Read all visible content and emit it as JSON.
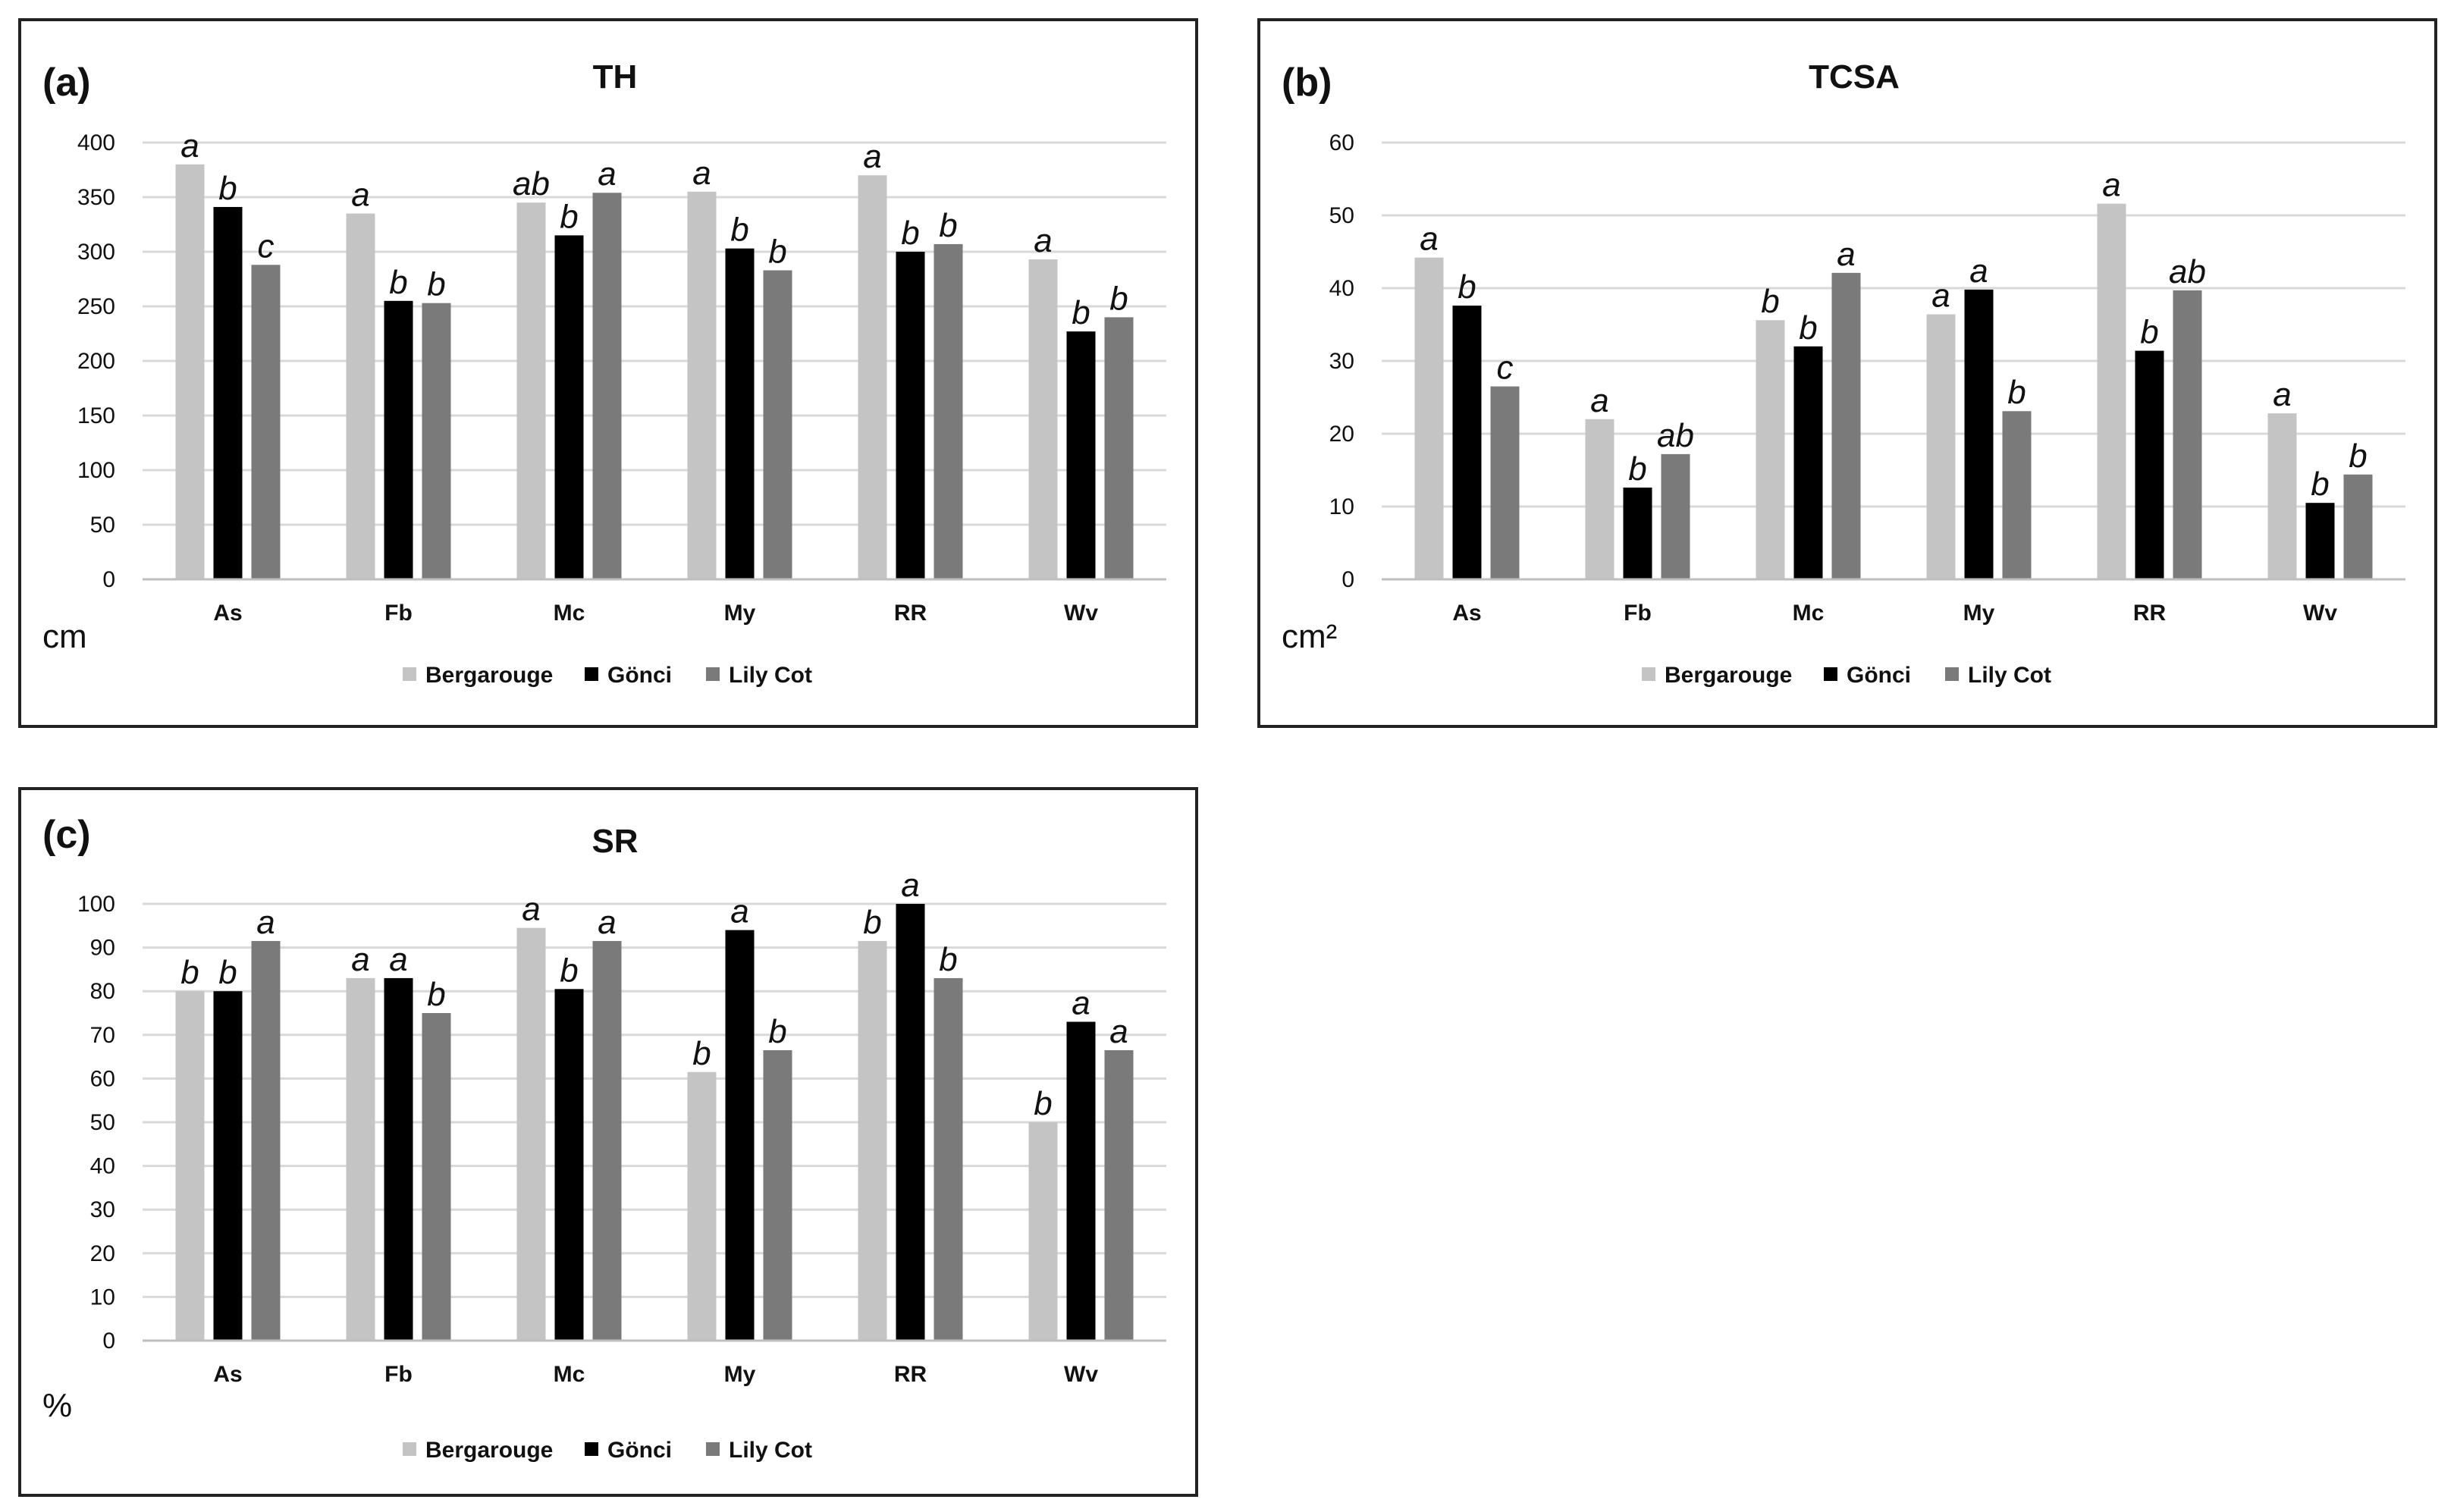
{
  "colors": {
    "Bergarouge": "#c4c4c4",
    "Gönci": "#000000",
    "Lily Cot": "#7a7a7a",
    "grid": "#d9d9d9",
    "axis": "#bfbfbf"
  },
  "chart_data": [
    {
      "panel": "(a)",
      "type": "bar",
      "title": "TH",
      "unit": "cm",
      "categories": [
        "As",
        "Fb",
        "Mc",
        "My",
        "RR",
        "Wv"
      ],
      "ylim": [
        0,
        400
      ],
      "yticks": [
        0,
        50,
        100,
        150,
        200,
        250,
        300,
        350,
        400
      ],
      "legend_position": "bottom",
      "series": [
        {
          "name": "Bergarouge",
          "values": [
            380,
            335,
            345,
            355,
            370,
            293
          ],
          "letters": [
            "a",
            "a",
            "ab",
            "a",
            "a",
            "a"
          ]
        },
        {
          "name": "Gönci",
          "values": [
            341,
            255,
            315,
            303,
            300,
            227
          ],
          "letters": [
            "b",
            "b",
            "b",
            "b",
            "b",
            "b"
          ]
        },
        {
          "name": "Lily Cot",
          "values": [
            288,
            253,
            354,
            283,
            307,
            240
          ],
          "letters": [
            "c",
            "b",
            "a",
            "b",
            "b",
            "b"
          ]
        }
      ]
    },
    {
      "panel": "(b)",
      "type": "bar",
      "title": "TCSA",
      "unit": "cm²",
      "categories": [
        "As",
        "Fb",
        "Mc",
        "My",
        "RR",
        "Wv"
      ],
      "ylim": [
        0,
        60
      ],
      "yticks": [
        0,
        10,
        20,
        30,
        40,
        50,
        60
      ],
      "legend_position": "bottom",
      "series": [
        {
          "name": "Bergarouge",
          "values": [
            44.2,
            22,
            35.6,
            36.4,
            51.6,
            22.8
          ],
          "letters": [
            "a",
            "a",
            "b",
            "a",
            "a",
            "a"
          ]
        },
        {
          "name": "Gönci",
          "values": [
            37.6,
            12.6,
            32,
            39.8,
            31.4,
            10.5
          ],
          "letters": [
            "b",
            "b",
            "b",
            "a",
            "b",
            "b"
          ]
        },
        {
          "name": "Lily Cot",
          "values": [
            26.5,
            17.2,
            42.1,
            23.1,
            39.7,
            14.4
          ],
          "letters": [
            "c",
            "ab",
            "a",
            "b",
            "ab",
            "b"
          ]
        }
      ]
    },
    {
      "panel": "(c)",
      "type": "bar",
      "title": "SR",
      "unit": "%",
      "categories": [
        "As",
        "Fb",
        "Mc",
        "My",
        "RR",
        "Wv"
      ],
      "ylim": [
        0,
        100
      ],
      "yticks": [
        0,
        10,
        20,
        30,
        40,
        50,
        60,
        70,
        80,
        90,
        100
      ],
      "legend_position": "bottom",
      "series": [
        {
          "name": "Bergarouge",
          "values": [
            80,
            83,
            94.5,
            61.5,
            91.5,
            50
          ],
          "letters": [
            "b",
            "a",
            "a",
            "b",
            "b",
            "b"
          ]
        },
        {
          "name": "Gönci",
          "values": [
            80,
            83,
            80.5,
            94,
            100,
            73
          ],
          "letters": [
            "b",
            "a",
            "b",
            "a",
            "a",
            "a"
          ]
        },
        {
          "name": "Lily Cot",
          "values": [
            91.5,
            75,
            91.5,
            66.5,
            83,
            66.5
          ],
          "letters": [
            "a",
            "b",
            "a",
            "b",
            "b",
            "a"
          ]
        }
      ]
    }
  ]
}
